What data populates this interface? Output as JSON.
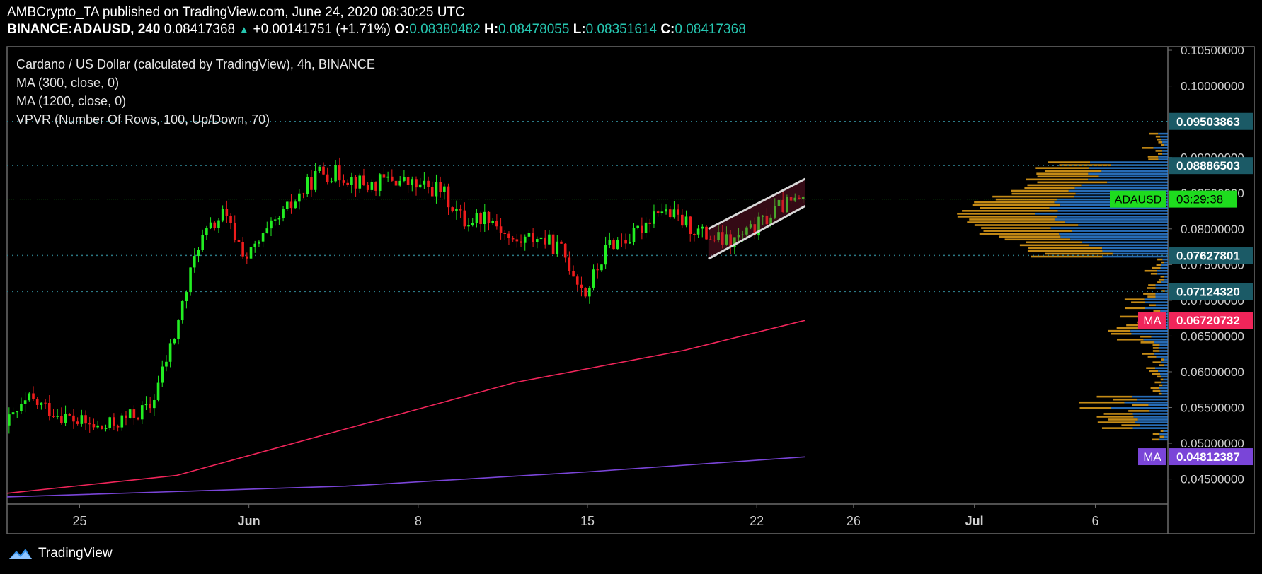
{
  "header": {
    "publisher": "AMBCrypto_TA",
    "published_text": "published on TradingView.com, June 24, 2020 08:30:25 UTC",
    "symbol": "BINANCE:ADAUSD, 240",
    "last": "0.08417368",
    "change": "+0.00141751 (+1.71%)",
    "o_label": "O:",
    "o": "0.08380482",
    "h_label": "H:",
    "h": "0.08478055",
    "l_label": "L:",
    "l": "0.08351614",
    "c_label": "C:",
    "c": "0.08417368"
  },
  "legend": {
    "title": "Cardano / US Dollar (calculated by TradingView), 4h, BINANCE",
    "ma1": "MA (300, close, 0)",
    "ma2": "MA (1200, close, 0)",
    "vpvr": "VPVR (Number Of Rows, 100, Up/Down, 70)"
  },
  "footer": {
    "brand": "TradingView"
  },
  "colors": {
    "up": "#22ee22",
    "down": "#ee1c1c",
    "ma300": "#f0255a",
    "ma1200": "#7a45d8",
    "vol_up": "#2e7fd6",
    "vol_down": "#e6a21a",
    "price_tag": "#1edc1e",
    "level_tag": "#1b5a66"
  },
  "chart_data": {
    "type": "candlestick",
    "title": "Cardano / US Dollar (calculated by TradingView), 4h, BINANCE",
    "x_ticks": [
      "25",
      "Jun",
      "8",
      "15",
      "22",
      "26",
      "Jul",
      "6"
    ],
    "y_ticks": [
      "0.10500000",
      "0.10000000",
      "0.09000000",
      "0.08500000",
      "0.08000000",
      "0.07500000",
      "0.07000000",
      "0.06500000",
      "0.06000000",
      "0.05500000",
      "0.05000000",
      "0.04500000"
    ],
    "ylim": [
      0.0415,
      0.1055
    ],
    "date_range": [
      "2020-05-22",
      "2020-07-09"
    ],
    "last_price": {
      "label": "ADAUSD",
      "value": "0.08417368",
      "countdown": "03:29:38",
      "price": 0.08417368
    },
    "horizontal_levels": [
      {
        "value": "0.09503863",
        "price": 0.09503863
      },
      {
        "value": "0.08886503",
        "price": 0.08886503
      },
      {
        "value": "0.07627801",
        "price": 0.07627801
      },
      {
        "value": "0.07124320",
        "price": 0.0712432
      }
    ],
    "ma_tags": [
      {
        "label": "MA",
        "value": "0.06720732",
        "price": 0.06720732
      },
      {
        "label": "MA",
        "value": "0.04812387",
        "price": 0.04812387
      }
    ],
    "price_anchors": [
      [
        "2020-05-22",
        0.0525
      ],
      [
        "2020-05-23",
        0.056
      ],
      [
        "2020-05-24",
        0.0545
      ],
      [
        "2020-05-25",
        0.053
      ],
      [
        "2020-05-26",
        0.052
      ],
      [
        "2020-05-27",
        0.0535
      ],
      [
        "2020-05-28",
        0.055
      ],
      [
        "2020-05-29",
        0.065
      ],
      [
        "2020-05-30",
        0.078
      ],
      [
        "2020-05-31",
        0.082
      ],
      [
        "2020-06-01",
        0.076
      ],
      [
        "2020-06-02",
        0.08
      ],
      [
        "2020-06-03",
        0.084
      ],
      [
        "2020-06-04",
        0.088
      ],
      [
        "2020-06-05",
        0.0875
      ],
      [
        "2020-06-06",
        0.086
      ],
      [
        "2020-06-07",
        0.087
      ],
      [
        "2020-06-08",
        0.086
      ],
      [
        "2020-06-09",
        0.0855
      ],
      [
        "2020-06-10",
        0.081
      ],
      [
        "2020-06-11",
        0.082
      ],
      [
        "2020-06-12",
        0.078
      ],
      [
        "2020-06-13",
        0.079
      ],
      [
        "2020-06-14",
        0.077
      ],
      [
        "2020-06-15",
        0.071
      ],
      [
        "2020-06-16",
        0.078
      ],
      [
        "2020-06-17",
        0.079
      ],
      [
        "2020-06-18",
        0.083
      ],
      [
        "2020-06-19",
        0.081
      ],
      [
        "2020-06-20",
        0.079
      ],
      [
        "2020-06-21",
        0.078
      ],
      [
        "2020-06-22",
        0.08
      ],
      [
        "2020-06-23",
        0.083
      ],
      [
        "2020-06-24",
        0.0842
      ]
    ],
    "series": [
      {
        "name": "MA (300, close, 0)",
        "points": [
          [
            "2020-05-22",
            0.043
          ],
          [
            "2020-05-29",
            0.0455
          ],
          [
            "2020-06-05",
            0.052
          ],
          [
            "2020-06-12",
            0.0585
          ],
          [
            "2020-06-19",
            0.063
          ],
          [
            "2020-06-24",
            0.0672
          ]
        ]
      },
      {
        "name": "MA (1200, close, 0)",
        "points": [
          [
            "2020-05-22",
            0.0425
          ],
          [
            "2020-06-05",
            0.044
          ],
          [
            "2020-06-15",
            0.046
          ],
          [
            "2020-06-24",
            0.0481
          ]
        ]
      }
    ],
    "channel": {
      "upper": [
        [
          "2020-06-20",
          0.08
        ],
        [
          "2020-06-24",
          0.087
        ]
      ],
      "lower": [
        [
          "2020-06-20",
          0.0758
        ],
        [
          "2020-06-24",
          0.0832
        ]
      ]
    }
  }
}
